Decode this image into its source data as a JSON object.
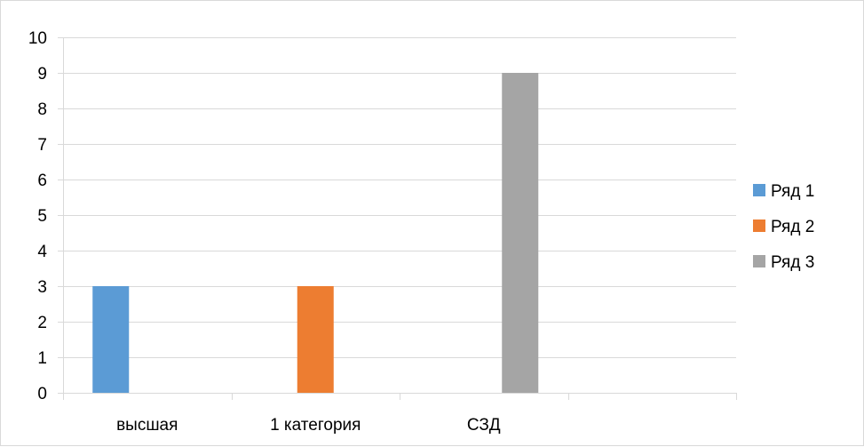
{
  "chart_data": {
    "type": "bar",
    "title": "",
    "xlabel": "",
    "ylabel": "",
    "categories": [
      "высшая",
      "1 категория",
      "СЗД",
      ""
    ],
    "series": [
      {
        "name": "Ряд 1",
        "color": "#5B9BD5",
        "values": [
          3,
          null,
          null,
          null
        ]
      },
      {
        "name": "Ряд 2",
        "color": "#ED7D31",
        "values": [
          null,
          3,
          null,
          null
        ]
      },
      {
        "name": "Ряд 3",
        "color": "#A5A5A5",
        "values": [
          null,
          null,
          9,
          null
        ]
      }
    ],
    "ylim": [
      0,
      10
    ],
    "yticks": [
      0,
      1,
      2,
      3,
      4,
      5,
      6,
      7,
      8,
      9,
      10
    ],
    "grid": true,
    "legend": "right"
  }
}
